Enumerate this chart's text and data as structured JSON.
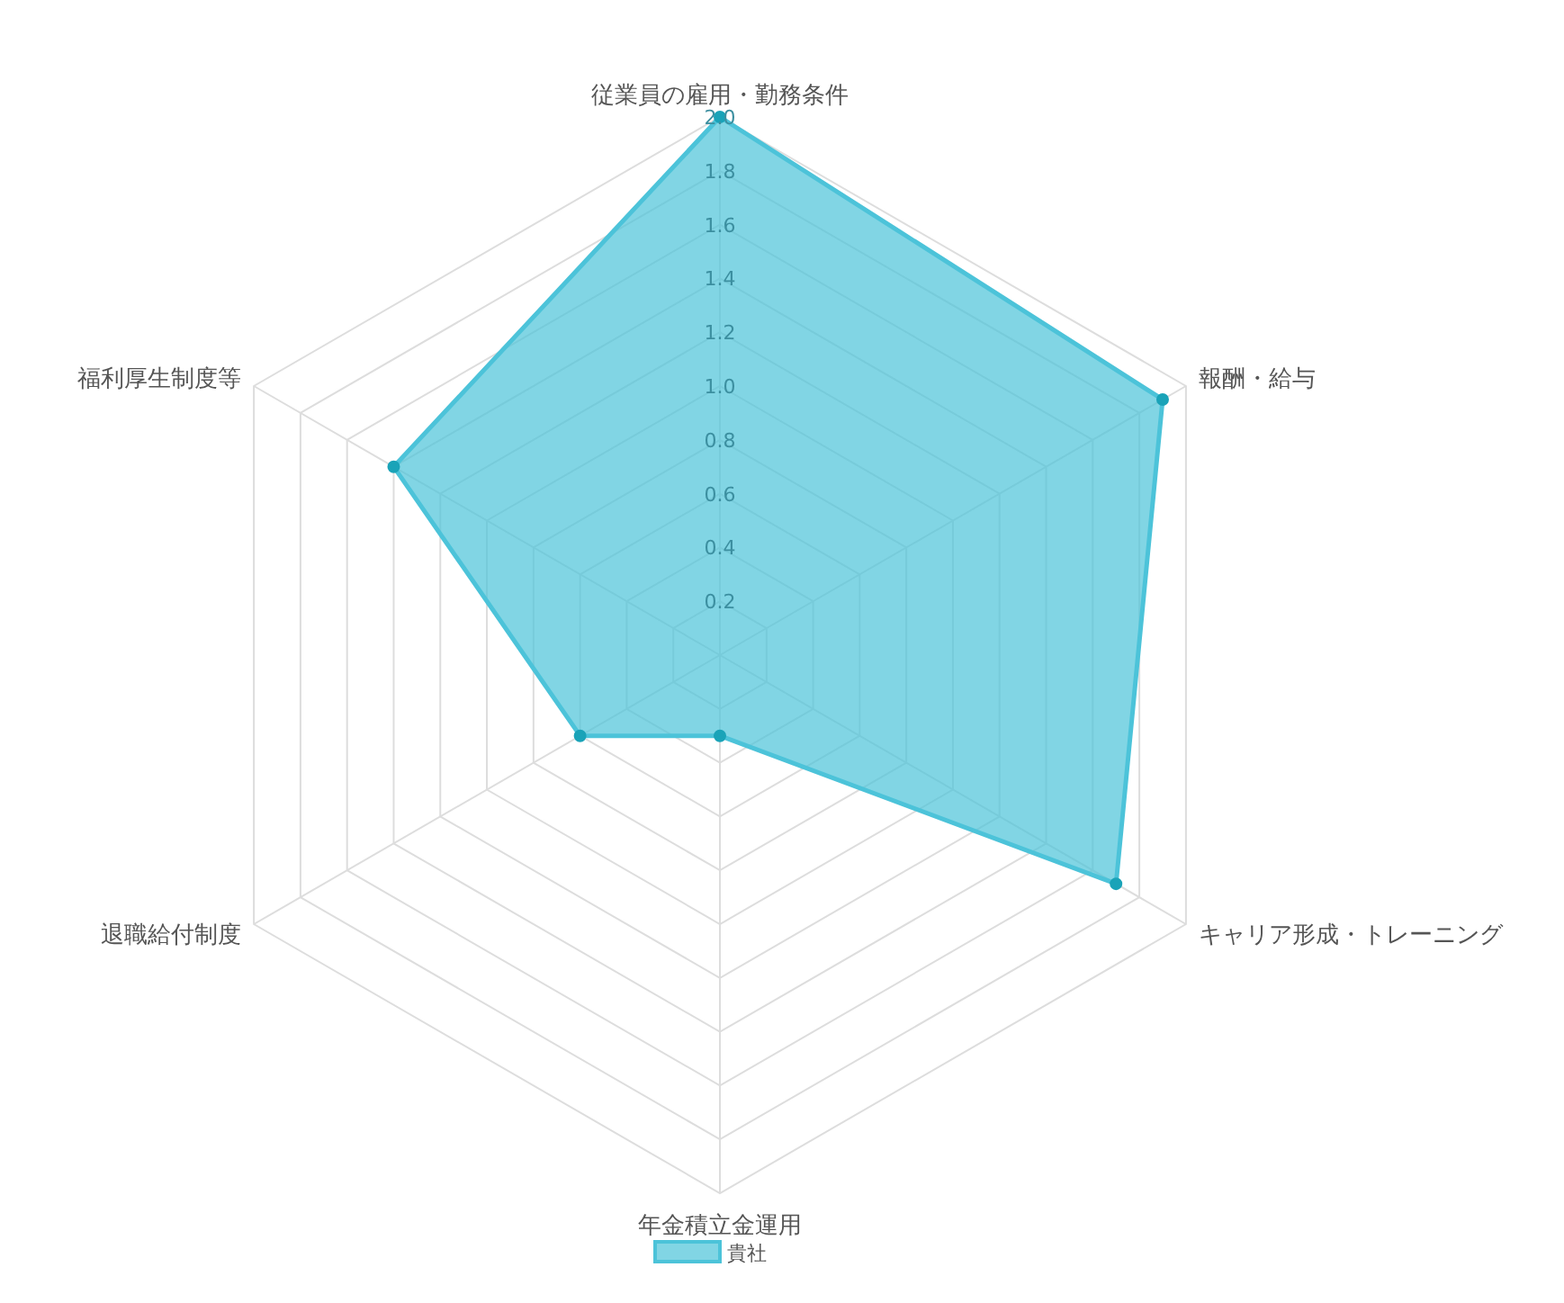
{
  "chart_data": {
    "type": "radar",
    "categories": [
      "従業員の雇用・勤務条件",
      "報酬・給与",
      "キャリア形成・トレーニング",
      "年金積立金運用",
      "退職給付制度",
      "福利厚生制度等"
    ],
    "series": [
      {
        "name": "貴社",
        "color": "#4cc3d9",
        "values": [
          2.0,
          1.9,
          1.7,
          0.3,
          0.6,
          1.4
        ]
      }
    ],
    "ylim": [
      0,
      2.0
    ],
    "yticks": [
      0.2,
      0.4,
      0.6,
      0.8,
      {
        "value": 1,
        "label": "1.0"
      },
      1.2,
      1.4,
      1.6,
      1.8,
      {
        "value": 2,
        "label": "2.0"
      }
    ],
    "marker": "circle",
    "legend": "bottom"
  }
}
